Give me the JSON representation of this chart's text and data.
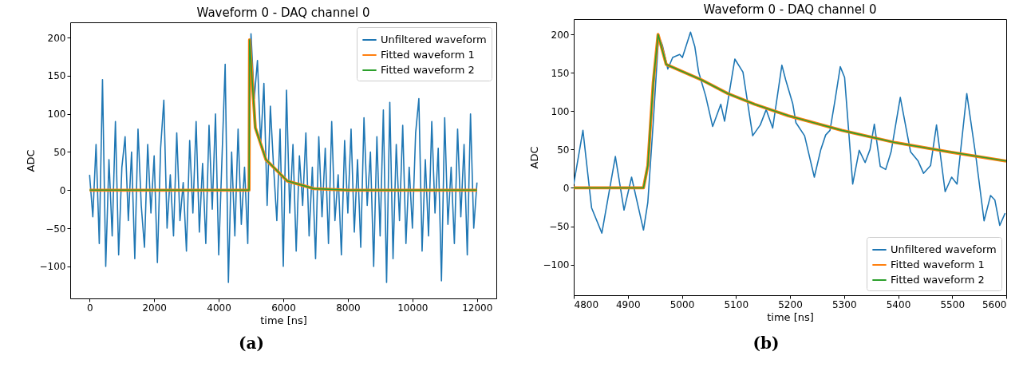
{
  "chart_data": [
    {
      "type": "line",
      "title": "Waveform 0 - DAQ channel 0",
      "xlabel": "time [ns]",
      "ylabel": "ADC",
      "xlim": [
        -600,
        12600
      ],
      "ylim": [
        -142,
        220
      ],
      "xticks": [
        0,
        2000,
        4000,
        6000,
        8000,
        10000,
        12000
      ],
      "yticks": [
        -100,
        -50,
        0,
        50,
        100,
        150,
        200
      ],
      "legend": "top right",
      "grid": false,
      "annotations": [
        "(a)"
      ],
      "series": [
        {
          "name": "Unfiltered waveform",
          "color": "#1f77b4",
          "x": [
            0,
            100,
            200,
            300,
            400,
            500,
            600,
            700,
            800,
            900,
            1000,
            1100,
            1200,
            1300,
            1400,
            1500,
            1600,
            1700,
            1800,
            1900,
            2000,
            2100,
            2200,
            2300,
            2400,
            2500,
            2600,
            2700,
            2800,
            2900,
            3000,
            3100,
            3200,
            3300,
            3400,
            3500,
            3600,
            3700,
            3800,
            3900,
            4000,
            4100,
            4200,
            4300,
            4400,
            4500,
            4600,
            4700,
            4800,
            4900,
            5000,
            5100,
            5200,
            5300,
            5400,
            5500,
            5600,
            5700,
            5800,
            5900,
            6000,
            6100,
            6200,
            6300,
            6400,
            6500,
            6600,
            6700,
            6800,
            6900,
            7000,
            7100,
            7200,
            7300,
            7400,
            7500,
            7600,
            7700,
            7800,
            7900,
            8000,
            8100,
            8200,
            8300,
            8400,
            8500,
            8600,
            8700,
            8800,
            8900,
            9000,
            9100,
            9200,
            9300,
            9400,
            9500,
            9600,
            9700,
            9800,
            9900,
            10000,
            10100,
            10200,
            10300,
            10400,
            10500,
            10600,
            10700,
            10800,
            10900,
            11000,
            11100,
            11200,
            11300,
            11400,
            11500,
            11600,
            11700,
            11800,
            11900,
            12000
          ],
          "values": [
            20,
            -35,
            60,
            -70,
            145,
            -100,
            40,
            -60,
            90,
            -85,
            30,
            70,
            -40,
            50,
            -90,
            80,
            -20,
            -75,
            60,
            -30,
            45,
            -95,
            55,
            118,
            -50,
            20,
            -60,
            75,
            -40,
            10,
            -80,
            65,
            -30,
            90,
            -55,
            35,
            -70,
            85,
            -25,
            100,
            -85,
            40,
            165,
            -121,
            50,
            -60,
            80,
            -45,
            30,
            -70,
            205,
            120,
            170,
            60,
            140,
            -20,
            110,
            30,
            -40,
            80,
            -100,
            131,
            -30,
            60,
            -80,
            45,
            -20,
            75,
            -60,
            30,
            -90,
            70,
            -35,
            55,
            -70,
            90,
            -40,
            20,
            -85,
            65,
            -30,
            80,
            -55,
            40,
            -75,
            95,
            -20,
            50,
            -100,
            70,
            -60,
            105,
            -121,
            115,
            -90,
            60,
            -40,
            85,
            -70,
            30,
            -50,
            75,
            120,
            -80,
            40,
            -60,
            90,
            -30,
            55,
            -119,
            95,
            -45,
            30,
            -70,
            80,
            -35,
            60,
            -85,
            100,
            -50,
            10
          ]
        },
        {
          "name": "Fitted waveform 1",
          "color": "#ff7f0e",
          "x": [
            0,
            1000,
            2000,
            3000,
            4000,
            4940,
            4955,
            5133,
            5463,
            6125,
            6943,
            8000,
            10000,
            12000
          ],
          "values": [
            0,
            0,
            0,
            0,
            0,
            0,
            197,
            82,
            40,
            12,
            2,
            0,
            0,
            0
          ]
        },
        {
          "name": "Fitted waveform 2",
          "color": "#2ca02c",
          "x": [
            0,
            1000,
            2000,
            3000,
            4000,
            4940,
            4955,
            5133,
            5463,
            6125,
            6943,
            8000,
            10000,
            12000
          ],
          "values": [
            0,
            0,
            0,
            0,
            0,
            0,
            197,
            82,
            40,
            12,
            2,
            0,
            0,
            0
          ]
        }
      ]
    },
    {
      "type": "line",
      "title": "Waveform 0 - DAQ channel 0",
      "xlabel": "time [ns]",
      "ylabel": "ADC",
      "xlim": [
        4800,
        5600
      ],
      "ylim": [
        -140,
        220
      ],
      "xticks": [
        4800,
        4900,
        5000,
        5100,
        5200,
        5300,
        5400,
        5500,
        5600
      ],
      "yticks": [
        -100,
        -50,
        0,
        50,
        100,
        150,
        200
      ],
      "legend": "bottom right",
      "grid": false,
      "annotations": [
        "(b)"
      ],
      "series": [
        {
          "name": "Unfiltered waveform",
          "color": "#1f77b4",
          "x": [
            4800,
            4817,
            4833,
            4852,
            4877,
            4893,
            4907,
            4929,
            4937,
            4947,
            4957,
            4964,
            4974,
            4983,
            4996,
            5001,
            5016,
            5024,
            5031,
            5044,
            5057,
            5072,
            5079,
            5098,
            5113,
            5131,
            5145,
            5156,
            5168,
            5185,
            5192,
            5205,
            5211,
            5227,
            5245,
            5257,
            5266,
            5274,
            5283,
            5293,
            5301,
            5316,
            5328,
            5339,
            5348,
            5356,
            5367,
            5377,
            5387,
            5404,
            5423,
            5437,
            5447,
            5460,
            5471,
            5487,
            5499,
            5509,
            5527,
            5544,
            5559,
            5571,
            5579,
            5588,
            5598
          ],
          "values": [
            5,
            75,
            -26,
            -59,
            41,
            -29,
            14,
            -55,
            -19,
            85,
            198,
            186,
            155,
            170,
            174,
            170,
            203,
            184,
            151,
            120,
            80,
            109,
            87,
            168,
            151,
            68,
            82,
            102,
            78,
            160,
            141,
            110,
            85,
            68,
            14,
            50,
            69,
            75,
            113,
            158,
            144,
            5,
            49,
            33,
            50,
            83,
            28,
            24,
            47,
            118,
            47,
            35,
            19,
            29,
            82,
            -5,
            14,
            5,
            123,
            40,
            -43,
            -10,
            -16,
            -49,
            -33
          ]
        },
        {
          "name": "Fitted waveform 1",
          "color": "#ff7f0e",
          "x": [
            4800,
            4850,
            4900,
            4929,
            4937,
            4947,
            4956,
            4971,
            5036,
            5085,
            5135,
            5197,
            5296,
            5395,
            5494,
            5600
          ],
          "values": [
            0,
            0,
            0,
            0,
            29,
            137,
            200,
            161,
            141,
            123,
            109,
            94,
            75,
            59,
            47,
            35
          ]
        },
        {
          "name": "Fitted waveform 2",
          "color": "#2ca02c",
          "x": [
            4800,
            4850,
            4900,
            4929,
            4937,
            4947,
            4956,
            4971,
            5036,
            5085,
            5135,
            5197,
            5296,
            5395,
            5494,
            5600
          ],
          "values": [
            0,
            0,
            0,
            0,
            29,
            137,
            200,
            161,
            141,
            123,
            109,
            94,
            75,
            59,
            47,
            35
          ]
        }
      ]
    }
  ]
}
